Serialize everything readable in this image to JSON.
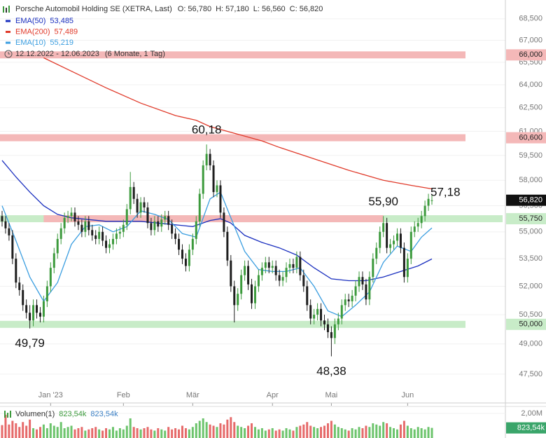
{
  "chart_data": {
    "type": "candlestick",
    "header": {
      "title": "Porsche Automobil Holding SE (XETRA, Last)",
      "quote": [
        "O: 56,780",
        "H: 57,180",
        "L: 56,560",
        "C: 56,820"
      ],
      "period": "12.12.2022 - 12.06.2023",
      "period_note": "(6 Monate, 1 Tag)"
    },
    "log_scale": true,
    "grid": true,
    "ylim": [
      46.11,
      69.84
    ],
    "yticks": [
      {
        "value": 47.5,
        "label": "47,500"
      },
      {
        "value": 49,
        "label": "49,000"
      },
      {
        "value": 50.5,
        "label": "50,500"
      },
      {
        "value": 52,
        "label": "52,000"
      },
      {
        "value": 53.5,
        "label": "53,500"
      },
      {
        "value": 55,
        "label": "55,000"
      },
      {
        "value": 56.5,
        "label": "56,500"
      },
      {
        "value": 58,
        "label": "58,000"
      },
      {
        "value": 59.5,
        "label": "59,500"
      },
      {
        "value": 61,
        "label": "61,000"
      },
      {
        "value": 62.5,
        "label": "62,500"
      },
      {
        "value": 64,
        "label": "64,000"
      },
      {
        "value": 65.5,
        "label": "65,500"
      },
      {
        "value": 67,
        "label": "67,000"
      },
      {
        "value": 68.5,
        "label": "68,500"
      }
    ],
    "xticks": [
      {
        "value": 14,
        "label": "Jan '23"
      },
      {
        "value": 35,
        "label": "Feb"
      },
      {
        "value": 55,
        "label": "Mär"
      },
      {
        "value": 78,
        "label": "Apr"
      },
      {
        "value": 95,
        "label": "Mai"
      },
      {
        "value": 117,
        "label": "Jun"
      }
    ],
    "up_color": "#3c9a3c",
    "down_color": "#1e1e1e",
    "ohlc": [
      [
        55.9,
        56.2,
        55.3,
        55.6
      ],
      [
        55.6,
        55.9,
        54.9,
        55.2
      ],
      [
        55.2,
        55.5,
        54.5,
        54.8
      ],
      [
        54.8,
        55.1,
        53.2,
        53.5
      ],
      [
        53.5,
        53.8,
        51.9,
        52.2
      ],
      [
        52.2,
        52.5,
        51.5,
        51.8
      ],
      [
        51.8,
        52.1,
        50.7,
        51.0
      ],
      [
        51.0,
        51.3,
        50.3,
        50.6
      ],
      [
        50.6,
        51.0,
        49.79,
        50.2
      ],
      [
        50.2,
        51.3,
        49.9,
        51.0
      ],
      [
        51.0,
        51.3,
        50.3,
        50.6
      ],
      [
        50.6,
        50.9,
        50.1,
        50.4
      ],
      [
        50.4,
        51.5,
        50.1,
        51.2
      ],
      [
        51.2,
        52.3,
        50.9,
        52.0
      ],
      [
        52.0,
        53.3,
        51.7,
        53.0
      ],
      [
        53.0,
        54.1,
        52.7,
        53.8
      ],
      [
        53.8,
        54.9,
        53.5,
        54.6
      ],
      [
        54.6,
        55.5,
        54.3,
        55.2
      ],
      [
        55.2,
        56.1,
        54.9,
        55.8
      ],
      [
        55.8,
        56.2,
        55.5,
        55.9
      ],
      [
        55.9,
        56.4,
        55.6,
        56.1
      ],
      [
        56.1,
        56.4,
        55.3,
        55.6
      ],
      [
        55.6,
        55.9,
        55.1,
        55.4
      ],
      [
        55.4,
        55.7,
        54.7,
        55.0
      ],
      [
        55.0,
        55.9,
        54.7,
        55.6
      ],
      [
        55.6,
        55.9,
        54.8,
        55.1
      ],
      [
        55.1,
        55.4,
        54.5,
        54.8
      ],
      [
        54.8,
        55.1,
        54.3,
        54.6
      ],
      [
        54.6,
        55.3,
        54.3,
        55.0
      ],
      [
        55.0,
        55.3,
        54.2,
        54.5
      ],
      [
        54.5,
        54.8,
        53.8,
        54.1
      ],
      [
        54.1,
        54.6,
        53.8,
        54.3
      ],
      [
        54.3,
        54.9,
        54.0,
        54.6
      ],
      [
        54.6,
        55.2,
        54.3,
        54.9
      ],
      [
        54.9,
        55.3,
        54.6,
        55.0
      ],
      [
        55.0,
        55.7,
        54.7,
        55.4
      ],
      [
        55.4,
        56.6,
        55.1,
        56.3
      ],
      [
        56.3,
        58.5,
        56.0,
        57.6
      ],
      [
        57.6,
        57.9,
        56.6,
        56.9
      ],
      [
        56.9,
        57.2,
        55.8,
        56.1
      ],
      [
        56.1,
        57.0,
        55.8,
        56.7
      ],
      [
        56.7,
        57.0,
        56.1,
        56.4
      ],
      [
        56.4,
        56.7,
        55.2,
        55.5
      ],
      [
        55.5,
        55.8,
        54.8,
        55.1
      ],
      [
        55.1,
        55.9,
        54.8,
        55.6
      ],
      [
        55.6,
        55.9,
        55.0,
        55.3
      ],
      [
        55.3,
        56.0,
        55.0,
        55.7
      ],
      [
        55.7,
        56.2,
        55.4,
        55.9
      ],
      [
        55.9,
        56.2,
        55.1,
        55.4
      ],
      [
        55.4,
        55.7,
        54.6,
        54.9
      ],
      [
        54.9,
        55.2,
        54.3,
        54.6
      ],
      [
        54.6,
        54.9,
        53.7,
        54.0
      ],
      [
        54.0,
        54.3,
        53.2,
        53.5
      ],
      [
        53.5,
        53.8,
        52.8,
        53.1
      ],
      [
        53.1,
        54.3,
        52.8,
        54.0
      ],
      [
        54.0,
        54.9,
        53.7,
        54.6
      ],
      [
        54.6,
        55.9,
        54.3,
        55.6
      ],
      [
        55.6,
        57.5,
        55.3,
        57.2
      ],
      [
        57.2,
        59.2,
        56.9,
        58.9
      ],
      [
        58.9,
        60.18,
        58.6,
        59.6
      ],
      [
        59.6,
        59.9,
        58.6,
        58.9
      ],
      [
        58.9,
        59.2,
        57.0,
        57.3
      ],
      [
        57.3,
        58.0,
        57.0,
        57.7
      ],
      [
        57.7,
        58.0,
        55.8,
        56.1
      ],
      [
        56.1,
        56.4,
        54.7,
        55.0
      ],
      [
        55.0,
        55.3,
        53.1,
        53.4
      ],
      [
        53.4,
        53.7,
        51.7,
        52.0
      ],
      [
        52.0,
        52.3,
        50.1,
        51.0
      ],
      [
        51.0,
        51.9,
        50.7,
        51.6
      ],
      [
        51.6,
        52.9,
        51.3,
        52.6
      ],
      [
        52.6,
        53.4,
        52.3,
        53.1
      ],
      [
        53.1,
        53.4,
        51.8,
        52.1
      ],
      [
        52.1,
        52.4,
        50.8,
        51.1
      ],
      [
        51.1,
        52.3,
        50.8,
        52.0
      ],
      [
        52.0,
        52.9,
        51.7,
        52.6
      ],
      [
        52.6,
        53.3,
        52.3,
        53.0
      ],
      [
        53.0,
        53.6,
        52.7,
        53.3
      ],
      [
        53.3,
        53.6,
        52.7,
        53.0
      ],
      [
        53.0,
        53.4,
        52.7,
        53.1
      ],
      [
        53.1,
        53.4,
        52.3,
        52.6
      ],
      [
        52.6,
        52.9,
        52.0,
        52.3
      ],
      [
        52.3,
        52.8,
        52.0,
        52.5
      ],
      [
        52.5,
        53.3,
        52.2,
        53.0
      ],
      [
        53.0,
        53.5,
        52.7,
        53.2
      ],
      [
        53.2,
        53.5,
        52.7,
        53.0
      ],
      [
        53.0,
        53.9,
        52.7,
        53.6
      ],
      [
        53.6,
        53.9,
        52.3,
        52.6
      ],
      [
        52.6,
        52.9,
        51.7,
        52.0
      ],
      [
        52.0,
        52.3,
        50.7,
        51.0
      ],
      [
        51.0,
        51.3,
        50.0,
        50.3
      ],
      [
        50.3,
        50.8,
        50.0,
        50.5
      ],
      [
        50.5,
        51.1,
        50.2,
        50.8
      ],
      [
        50.8,
        51.1,
        49.9,
        50.2
      ],
      [
        50.2,
        50.5,
        49.7,
        50.0
      ],
      [
        50.0,
        50.3,
        49.3,
        49.6
      ],
      [
        49.6,
        49.9,
        48.38,
        49.3
      ],
      [
        49.3,
        50.3,
        49.0,
        50.0
      ],
      [
        50.0,
        50.6,
        49.7,
        50.3
      ],
      [
        50.3,
        51.3,
        50.0,
        51.0
      ],
      [
        51.0,
        51.6,
        50.7,
        51.3
      ],
      [
        51.3,
        51.6,
        50.9,
        51.2
      ],
      [
        51.2,
        51.8,
        50.9,
        51.5
      ],
      [
        51.5,
        52.3,
        51.2,
        52.0
      ],
      [
        52.0,
        52.8,
        51.7,
        52.5
      ],
      [
        52.5,
        52.8,
        51.8,
        52.1
      ],
      [
        52.1,
        52.4,
        51.0,
        51.3
      ],
      [
        51.3,
        52.8,
        51.0,
        52.5
      ],
      [
        52.5,
        53.8,
        52.2,
        53.5
      ],
      [
        53.5,
        54.4,
        53.2,
        54.1
      ],
      [
        54.1,
        55.3,
        53.8,
        55.0
      ],
      [
        55.0,
        55.9,
        54.7,
        55.5
      ],
      [
        55.5,
        55.8,
        53.8,
        54.1
      ],
      [
        54.1,
        54.6,
        53.8,
        54.3
      ],
      [
        54.3,
        54.8,
        54.0,
        54.5
      ],
      [
        54.5,
        55.2,
        54.2,
        54.9
      ],
      [
        54.9,
        55.2,
        53.8,
        54.1
      ],
      [
        54.1,
        54.4,
        52.2,
        52.5
      ],
      [
        52.5,
        53.8,
        52.2,
        53.5
      ],
      [
        53.5,
        55.3,
        53.2,
        55.0
      ],
      [
        55.0,
        55.6,
        54.7,
        55.3
      ],
      [
        55.3,
        55.8,
        55.0,
        55.5
      ],
      [
        55.5,
        56.2,
        55.2,
        55.9
      ],
      [
        55.9,
        56.8,
        55.6,
        56.5
      ],
      [
        56.5,
        57.2,
        56.2,
        56.9
      ],
      [
        56.78,
        57.18,
        56.56,
        56.82
      ]
    ],
    "series": [
      {
        "name": "EMA(50)",
        "value_label": "53,485",
        "color": "#1a2fbf",
        "x": [
          0,
          4,
          8,
          12,
          16,
          20,
          25,
          30,
          40,
          50,
          55,
          60,
          63,
          66,
          70,
          75,
          80,
          85,
          90,
          95,
          100,
          105,
          110,
          115,
          120,
          124
        ],
        "values": [
          59.2,
          58.2,
          57.3,
          56.5,
          56.0,
          55.8,
          55.7,
          55.6,
          55.6,
          55.4,
          55.3,
          55.65,
          55.75,
          55.5,
          54.8,
          54.4,
          54.1,
          53.7,
          53.0,
          52.4,
          52.3,
          52.3,
          52.5,
          52.8,
          53.1,
          53.485
        ]
      },
      {
        "name": "EMA(200)",
        "value_label": "57,489",
        "color": "#e03a2a",
        "x": [
          12,
          20,
          30,
          40,
          50,
          56,
          60,
          70,
          75,
          80,
          90,
          100,
          110,
          118,
          124
        ],
        "values": [
          65.8,
          64.9,
          63.8,
          62.8,
          62.0,
          61.7,
          61.3,
          60.7,
          60.4,
          60.0,
          59.3,
          58.6,
          58.0,
          57.7,
          57.489
        ]
      },
      {
        "name": "EMA(10)",
        "value_label": "55,219",
        "color": "#3b9ee0",
        "x": [
          0,
          4,
          8,
          12,
          16,
          20,
          24,
          28,
          32,
          36,
          40,
          44,
          48,
          52,
          56,
          60,
          63,
          66,
          70,
          74,
          78,
          82,
          86,
          90,
          94,
          98,
          102,
          106,
          110,
          114,
          118,
          121,
          124
        ],
        "values": [
          56.5,
          54.5,
          52.5,
          51.2,
          52.2,
          54.3,
          55.3,
          55.4,
          55.0,
          55.3,
          56.2,
          56.0,
          55.7,
          54.9,
          54.7,
          56.9,
          57.3,
          55.8,
          53.9,
          52.9,
          52.8,
          52.8,
          53.0,
          52.0,
          50.7,
          50.4,
          51.0,
          51.7,
          53.3,
          54.2,
          53.9,
          54.7,
          55.219
        ]
      }
    ],
    "levels": [
      {
        "value": 66,
        "label": "66,000",
        "color": "#f4b8b8"
      },
      {
        "value": 60.6,
        "label": "60,600",
        "color": "#f4b8b8"
      },
      {
        "value": 55.75,
        "label": "55,750",
        "color": "#c8ecc8",
        "overlay": {
          "from": 12,
          "to": 110,
          "color": "#f4b8b8"
        }
      },
      {
        "value": 50,
        "label": "50,000",
        "color": "#c8ecc8"
      }
    ],
    "last": {
      "value": 56.82,
      "label": "56,820"
    },
    "annotations": [
      {
        "text": "49,79",
        "value": 49.79,
        "index": 8,
        "kind": "low"
      },
      {
        "text": "60,18",
        "value": 60.18,
        "index": 59,
        "kind": "high"
      },
      {
        "text": "48,38",
        "value": 48.38,
        "index": 95,
        "kind": "low"
      },
      {
        "text": "55,90",
        "value": 55.9,
        "index": 110,
        "kind": "high"
      },
      {
        "text": "57,18",
        "value": 57.18,
        "index": 124,
        "kind": "right"
      }
    ],
    "volume": {
      "name": "Volumen(1)",
      "last_label": "823,54k",
      "up_color": "#6cc46c",
      "down_color": "#e66a6a",
      "ylim": [
        0,
        2.57
      ],
      "yticks": [
        {
          "value": 2,
          "label": "2,00M"
        }
      ],
      "values": [
        1.05,
        1.9,
        1.1,
        1.4,
        1.2,
        0.9,
        1.3,
        1.0,
        1.5,
        0.8,
        0.7,
        0.9,
        1.1,
        0.8,
        1.2,
        1.0,
        0.9,
        1.3,
        0.8,
        0.9,
        1.0,
        0.7,
        0.8,
        0.9,
        0.6,
        0.7,
        0.8,
        0.9,
        0.7,
        0.6,
        0.8,
        0.7,
        0.9,
        0.6,
        0.8,
        0.7,
        1.0,
        1.6,
        0.9,
        0.8,
        0.7,
        0.8,
        0.9,
        0.7,
        0.6,
        0.8,
        0.7,
        0.6,
        0.9,
        0.7,
        0.8,
        0.7,
        1.0,
        0.8,
        0.7,
        0.9,
        1.2,
        1.4,
        1.6,
        1.3,
        1.1,
        1.0,
        0.9,
        1.2,
        1.1,
        1.5,
        1.7,
        1.3,
        1.0,
        0.9,
        0.8,
        1.0,
        1.2,
        0.9,
        0.7,
        0.8,
        0.6,
        0.7,
        0.8,
        0.6,
        0.7,
        0.6,
        0.8,
        0.7,
        0.6,
        0.9,
        1.0,
        1.1,
        1.3,
        1.0,
        0.9,
        0.8,
        0.9,
        1.0,
        1.2,
        1.4,
        1.1,
        0.9,
        0.8,
        0.7,
        0.6,
        0.8,
        0.7,
        0.9,
        0.8,
        1.0,
        0.9,
        1.2,
        1.1,
        1.0,
        1.3,
        1.2,
        0.9,
        0.8,
        0.7,
        1.1,
        1.4,
        1.0,
        0.8,
        0.7,
        0.9,
        0.8,
        0.7,
        0.9,
        0.82354
      ]
    }
  }
}
